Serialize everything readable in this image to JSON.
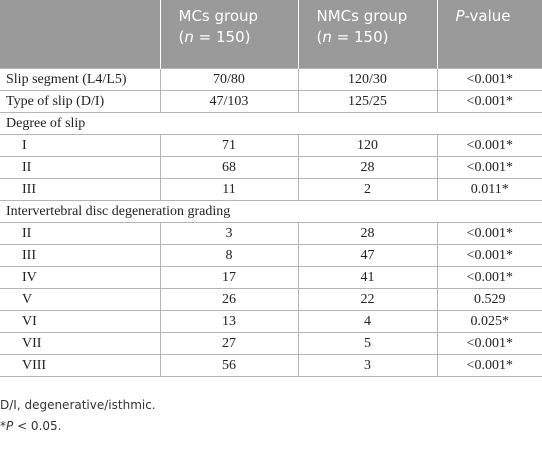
{
  "table": {
    "columns": [
      {
        "line1": ""
      },
      {
        "line1": "MCs group",
        "line2": {
          "pre": "(",
          "italic": "n",
          "post": " = 150)"
        }
      },
      {
        "line1": "NMCs group",
        "line2": {
          "pre": "(",
          "italic": "n",
          "post": " = 150)"
        }
      },
      {
        "line1": {
          "italic": "P",
          "post": "-value"
        }
      }
    ],
    "body": [
      {
        "cells": [
          "Slip segment (L4/L5)",
          "70/80",
          "120/30",
          "<0.001*"
        ]
      },
      {
        "cells": [
          "Type of slip (D/I)",
          "47/103",
          "125/25",
          "<0.001*"
        ]
      },
      {
        "section": "Degree of slip",
        "rows": [
          [
            "I",
            "71",
            "120",
            "<0.001*"
          ],
          [
            "II",
            "68",
            "28",
            "<0.001*"
          ],
          [
            "III",
            "11",
            "2",
            "0.011*"
          ]
        ]
      },
      {
        "section": "Intervertebral disc degeneration grading",
        "rows": [
          [
            "II",
            "3",
            "28",
            "<0.001*"
          ],
          [
            "III",
            "8",
            "47",
            "<0.001*"
          ],
          [
            "IV",
            "17",
            "41",
            "<0.001*"
          ],
          [
            "V",
            "26",
            "22",
            "0.529"
          ],
          [
            "VI",
            "13",
            "4",
            "0.025*"
          ],
          [
            "VII",
            "27",
            "5",
            "<0.001*"
          ],
          [
            "VIII",
            "56",
            "3",
            "<0.001*"
          ]
        ]
      }
    ]
  },
  "footnotes": [
    {
      "text": "D/I, degenerative/isthmic."
    },
    {
      "pre": "*",
      "italic": "P",
      "post": " < 0.05."
    }
  ]
}
